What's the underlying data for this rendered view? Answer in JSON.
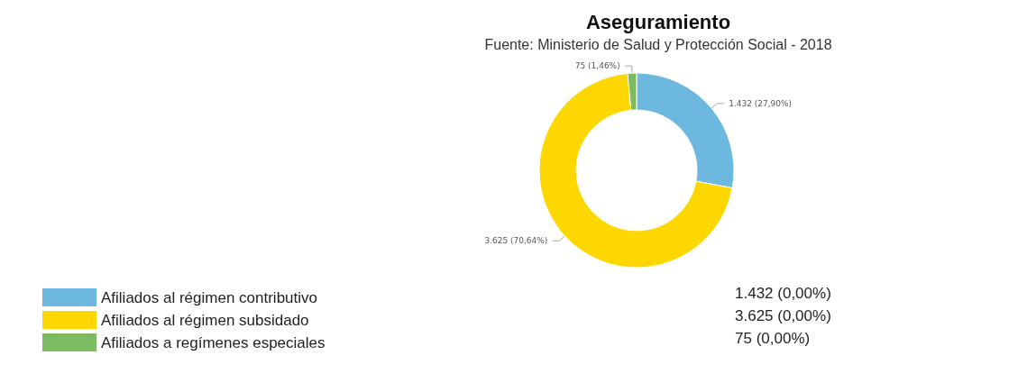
{
  "chart_data": {
    "type": "donut",
    "title": "Aseguramiento",
    "subtitle": "Fuente: Ministerio de Salud y Protección Social - 2018",
    "categories": [
      "Afiliados al régimen contributivo",
      "Afiliados al régimen subsidado",
      "Afiliados a regímenes especiales"
    ],
    "values": [
      1432,
      3625,
      75
    ],
    "colors": [
      "#6cb8de",
      "#fed700",
      "#7dbb63"
    ],
    "value_labels": [
      "1.432 (27,90%)",
      "3.625 (70,64%)",
      "75 (1,46%)"
    ],
    "annotations": [
      "1.432 (0,00%)",
      "3.625 (0,00%)",
      "75 (0,00%)"
    ],
    "legend": "bottom left"
  }
}
